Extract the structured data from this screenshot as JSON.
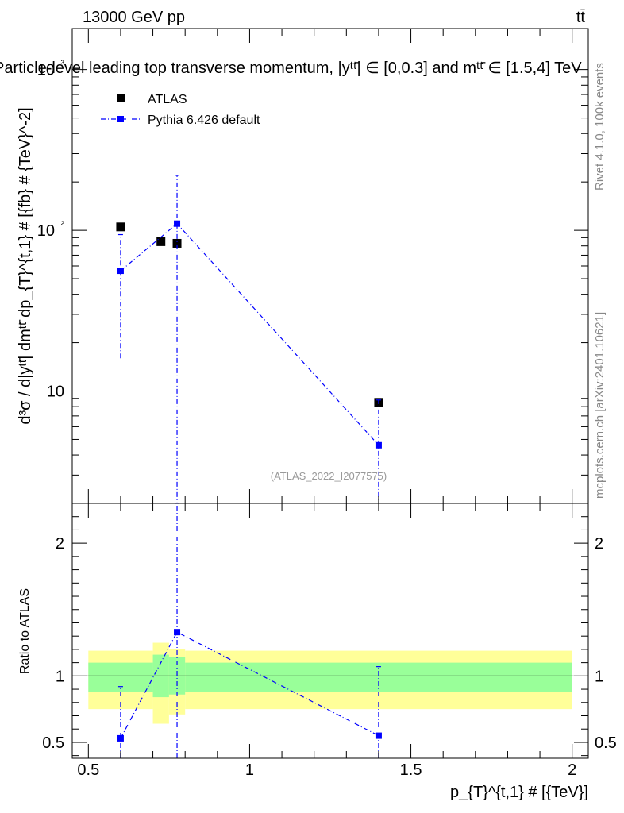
{
  "header": {
    "energy_label": "13000 GeV pp",
    "process_label": "tt̄"
  },
  "side_labels": {
    "rivet": "Rivet 4.1.0,  100k events",
    "mcplots": "mcplots.cern.ch [arXiv:2401.10621]"
  },
  "chart_data": [
    {
      "type": "scatter",
      "title": "Particle-level leading top transverse momentum, |yᵗᵗ̄| ∈ [0,0.3] and mᵗᵗ̄ ∈ [1.5,4] TeV",
      "ylabel": "d³σ / d|yᵗᵗ̄| dmᵗᵗ̄ dp_{T}^{t,1} # [{fb} # {TeV}^-2]",
      "yscale": "log",
      "ylim": [
        2,
        1800
      ],
      "xlim": [
        0.45,
        2.05
      ],
      "analysis_label": "(ATLAS_2022_I2077575)",
      "y_ticks": [
        {
          "v": 10,
          "label": "10"
        },
        {
          "v": 100,
          "label": "10²"
        },
        {
          "v": 1000,
          "label": "10³"
        }
      ],
      "series": [
        {
          "name": "ATLAS",
          "color": "#000000",
          "style": "marker",
          "points": [
            {
              "x": 0.6,
              "y": 105
            },
            {
              "x": 0.725,
              "y": 85
            },
            {
              "x": 0.775,
              "y": 83
            },
            {
              "x": 1.4,
              "y": 8.5
            }
          ]
        },
        {
          "name": "Pythia 6.426 default",
          "color": "#0000ff",
          "style": "dashdot",
          "points": [
            {
              "x": 0.6,
              "y": 56,
              "ylo": 16,
              "yhi": 94
            },
            {
              "x": 0.775,
              "y": 110,
              "ylo": 0.5,
              "yhi": 220
            },
            {
              "x": 1.4,
              "y": 4.6,
              "ylo": 0.5,
              "yhi": 8.8
            }
          ]
        }
      ]
    },
    {
      "type": "scatter",
      "ylabel": "Ratio to ATLAS",
      "xlabel": "p_{T}^{t,1} # [{TeV}]",
      "ylim": [
        0.38,
        2.3
      ],
      "xlim": [
        0.45,
        2.05
      ],
      "x_ticks": [
        {
          "v": 0.5,
          "label": "0.5"
        },
        {
          "v": 1,
          "label": "1"
        },
        {
          "v": 1.5,
          "label": "1.5"
        },
        {
          "v": 2,
          "label": "2"
        }
      ],
      "y_ticks": [
        {
          "v": 0.5,
          "label": "0.5"
        },
        {
          "v": 1,
          "label": "1"
        },
        {
          "v": 2,
          "label": "2"
        }
      ],
      "bands": [
        {
          "x0": 0.5,
          "x1": 0.7,
          "green": [
            0.88,
            1.1
          ],
          "yellow": [
            0.75,
            1.19
          ]
        },
        {
          "x0": 0.7,
          "x1": 0.75,
          "green": [
            0.84,
            1.16
          ],
          "yellow": [
            0.64,
            1.25
          ]
        },
        {
          "x0": 0.75,
          "x1": 0.8,
          "green": [
            0.86,
            1.14
          ],
          "yellow": [
            0.71,
            1.2
          ]
        },
        {
          "x0": 0.8,
          "x1": 2.0,
          "green": [
            0.88,
            1.1
          ],
          "yellow": [
            0.75,
            1.19
          ]
        }
      ],
      "points": [
        {
          "x": 0.6,
          "y": 0.53,
          "ylo": 0.38,
          "yhi": 0.92
        },
        {
          "x": 0.775,
          "y": 1.33,
          "ylo": 0.38,
          "yhi": 2.3
        },
        {
          "x": 1.4,
          "y": 0.55,
          "ylo": 0.38,
          "yhi": 1.07
        }
      ]
    }
  ]
}
